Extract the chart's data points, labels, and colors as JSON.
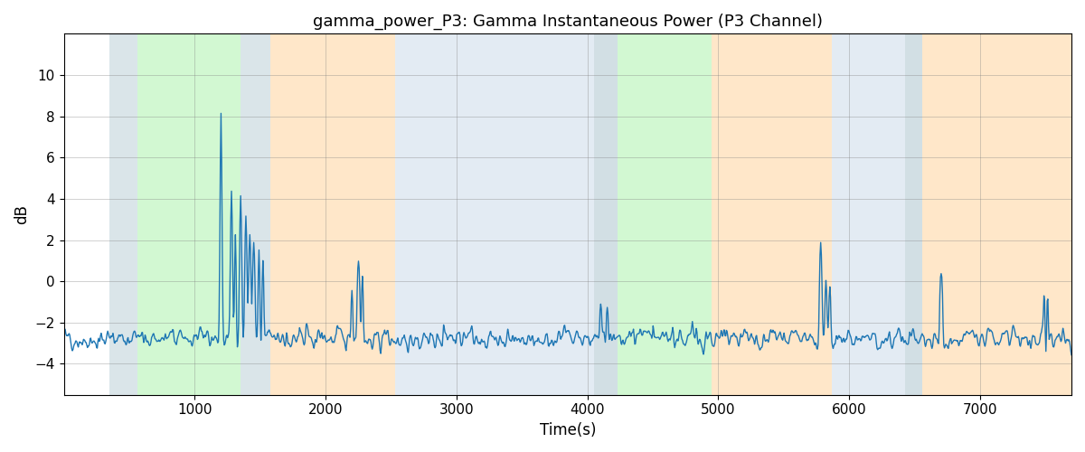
{
  "title": "gamma_power_P3: Gamma Instantaneous Power (P3 Channel)",
  "xlabel": "Time(s)",
  "ylabel": "dB",
  "xlim": [
    0,
    7700
  ],
  "ylim": [
    -5.5,
    12
  ],
  "yticks": [
    -4,
    -2,
    0,
    2,
    4,
    6,
    8,
    10
  ],
  "xticks": [
    1000,
    2000,
    3000,
    4000,
    5000,
    6000,
    7000
  ],
  "line_color": "#1f77b4",
  "line_width": 1.0,
  "background_color": "#ffffff",
  "bands": [
    {
      "start": 350,
      "end": 560,
      "color": "#aec6cf",
      "alpha": 0.45
    },
    {
      "start": 560,
      "end": 1350,
      "color": "#90ee90",
      "alpha": 0.4
    },
    {
      "start": 1350,
      "end": 1580,
      "color": "#aec6cf",
      "alpha": 0.45
    },
    {
      "start": 1580,
      "end": 2530,
      "color": "#ffd59e",
      "alpha": 0.55
    },
    {
      "start": 2530,
      "end": 4050,
      "color": "#c8d8e8",
      "alpha": 0.5
    },
    {
      "start": 4050,
      "end": 4230,
      "color": "#aec6cf",
      "alpha": 0.55
    },
    {
      "start": 4230,
      "end": 4950,
      "color": "#90ee90",
      "alpha": 0.4
    },
    {
      "start": 4950,
      "end": 5870,
      "color": "#ffd59e",
      "alpha": 0.55
    },
    {
      "start": 5870,
      "end": 6430,
      "color": "#c8d8e8",
      "alpha": 0.5
    },
    {
      "start": 6430,
      "end": 6560,
      "color": "#aec6cf",
      "alpha": 0.55
    },
    {
      "start": 6560,
      "end": 7700,
      "color": "#ffd59e",
      "alpha": 0.55
    }
  ],
  "seed": 42,
  "n_points": 1540,
  "figsize": [
    12.0,
    5.0
  ],
  "dpi": 100
}
